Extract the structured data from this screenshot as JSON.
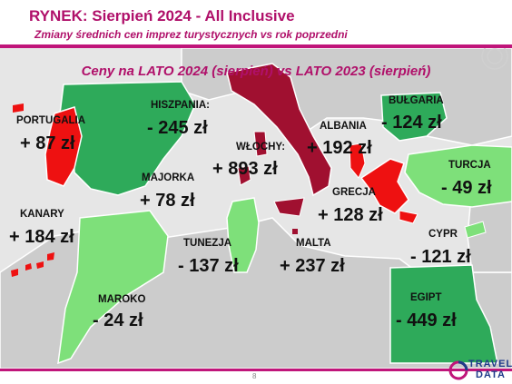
{
  "header": {
    "title": "RYNEK: Sierpień 2024 - All Inclusive",
    "subtitle": "Zmiany średnich cen imprez turystycznych vs rok poprzedni"
  },
  "map_title": "Ceny na LATO 2024 (sierpień) vs  LATO 2023 (sierpień)",
  "colors": {
    "accent": "#b0106a",
    "sea": "#e6e6e6",
    "land_gray": "#cccccc",
    "green_dark": "#2eaa5a",
    "green_light": "#7ee07a",
    "red": "#ee1111",
    "maroon": "#a01030"
  },
  "regions": {
    "portugalia": {
      "name": "PORTUGALIA",
      "value": "+ 87 zł"
    },
    "hiszpania": {
      "name": "HISZPANIA:",
      "value": "- 245 zł"
    },
    "wlochy": {
      "name": "WŁOCHY:",
      "value": "+ 893 zł"
    },
    "albania": {
      "name": "ALBANIA",
      "value": "+ 192 zł"
    },
    "bulgaria": {
      "name": "BUŁGARIA",
      "value": "- 124 zł"
    },
    "turcja": {
      "name": "TURCJA",
      "value": "- 49 zł"
    },
    "majorka": {
      "name": "MAJORKA",
      "value": "+ 78 zł"
    },
    "grecja": {
      "name": "GRECJA",
      "value": "+ 128 zł"
    },
    "kanary": {
      "name": "KANARY",
      "value": "+ 184 zł"
    },
    "tunezja": {
      "name": "TUNEZJA",
      "value": "- 137 zł"
    },
    "malta": {
      "name": "MALTA",
      "value": "+ 237 zł"
    },
    "cypr": {
      "name": "CYPR",
      "value": "- 121 zł"
    },
    "maroko": {
      "name": "MAROKO",
      "value": "- 24 zł"
    },
    "egipt": {
      "name": "EGIPT",
      "value": "- 449 zł"
    }
  },
  "page_number": "8",
  "logo": {
    "line1": "TRAVEL",
    "line2": "DATA"
  }
}
